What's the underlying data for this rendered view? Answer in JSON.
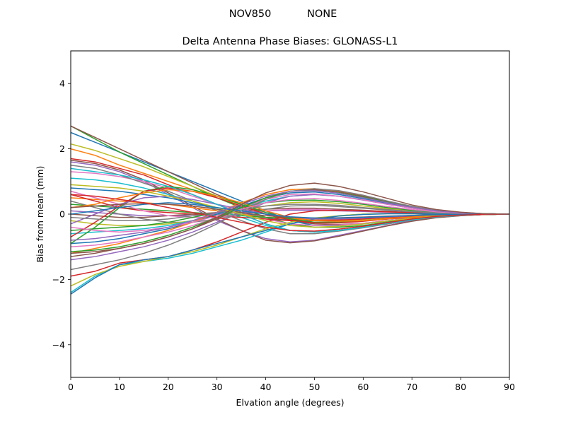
{
  "chart_data": {
    "type": "line",
    "suptitle": "NOV850           NONE",
    "title": "Delta Antenna Phase Biases: GLONASS-L1",
    "xlabel": "Elvation angle (degrees)",
    "ylabel": "Bias from mean (mm)",
    "xlim": [
      0,
      90
    ],
    "ylim": [
      -5,
      5
    ],
    "xticks": [
      "0",
      "10",
      "20",
      "30",
      "40",
      "50",
      "60",
      "70",
      "80",
      "90"
    ],
    "yticks": [
      "−4",
      "−2",
      "0",
      "2",
      "4"
    ],
    "grid": false,
    "legend": "none",
    "x": [
      0,
      5,
      10,
      15,
      20,
      25,
      30,
      35,
      40,
      45,
      50,
      55,
      60,
      65,
      70,
      75,
      80,
      85,
      90
    ],
    "series": [
      {
        "color": "#1f77b4",
        "values": [
          2.5,
          2.2,
          1.9,
          1.6,
          1.3,
          1.0,
          0.7,
          0.4,
          0.1,
          -0.2,
          -0.35,
          -0.35,
          -0.3,
          -0.22,
          -0.15,
          -0.08,
          -0.04,
          -0.01,
          0.0
        ]
      },
      {
        "color": "#ff7f0e",
        "values": [
          2.0,
          1.8,
          1.5,
          1.25,
          1.0,
          0.75,
          0.5,
          0.25,
          0.0,
          -0.15,
          -0.25,
          -0.25,
          -0.2,
          -0.15,
          -0.1,
          -0.05,
          -0.02,
          -0.01,
          0.0
        ]
      },
      {
        "color": "#2ca02c",
        "values": [
          2.7,
          2.3,
          1.9,
          1.55,
          1.2,
          0.85,
          0.5,
          0.2,
          -0.1,
          -0.3,
          -0.4,
          -0.4,
          -0.35,
          -0.25,
          -0.15,
          -0.08,
          -0.04,
          -0.01,
          0.0
        ]
      },
      {
        "color": "#8c564b",
        "values": [
          2.7,
          2.35,
          2.0,
          1.65,
          1.3,
          0.95,
          0.6,
          0.3,
          0.0,
          -0.2,
          -0.3,
          -0.32,
          -0.28,
          -0.2,
          -0.12,
          -0.06,
          -0.03,
          -0.01,
          0.0
        ]
      },
      {
        "color": "#bcbd22",
        "values": [
          2.15,
          1.95,
          1.7,
          1.45,
          1.15,
          0.85,
          0.55,
          0.25,
          0.0,
          -0.15,
          -0.2,
          -0.2,
          -0.17,
          -0.12,
          -0.08,
          -0.04,
          -0.02,
          -0.01,
          0.0
        ]
      },
      {
        "color": "#d62728",
        "values": [
          1.7,
          1.6,
          1.4,
          1.2,
          0.9,
          0.6,
          0.3,
          0.0,
          -0.3,
          -0.5,
          -0.55,
          -0.5,
          -0.4,
          -0.3,
          -0.18,
          -0.09,
          -0.04,
          -0.01,
          0.0
        ]
      },
      {
        "color": "#9467bd",
        "values": [
          1.6,
          1.5,
          1.3,
          1.0,
          0.6,
          0.2,
          -0.2,
          -0.5,
          -0.75,
          -0.85,
          -0.8,
          -0.65,
          -0.5,
          -0.35,
          -0.2,
          -0.1,
          -0.05,
          -0.01,
          0.0
        ]
      },
      {
        "color": "#8c564b",
        "values": [
          1.65,
          1.55,
          1.35,
          1.05,
          0.65,
          0.25,
          -0.15,
          -0.5,
          -0.8,
          -0.88,
          -0.82,
          -0.68,
          -0.52,
          -0.36,
          -0.22,
          -0.11,
          -0.05,
          -0.01,
          0.0
        ]
      },
      {
        "color": "#e377c2",
        "values": [
          1.3,
          1.25,
          1.15,
          1.0,
          0.8,
          0.55,
          0.3,
          0.05,
          -0.15,
          -0.3,
          -0.35,
          -0.33,
          -0.28,
          -0.2,
          -0.12,
          -0.06,
          -0.03,
          -0.01,
          0.0
        ]
      },
      {
        "color": "#7f7f7f",
        "values": [
          1.5,
          1.4,
          1.2,
          0.95,
          0.7,
          0.4,
          0.1,
          -0.2,
          -0.45,
          -0.6,
          -0.6,
          -0.52,
          -0.42,
          -0.3,
          -0.18,
          -0.09,
          -0.04,
          -0.01,
          0.0
        ]
      },
      {
        "color": "#17becf",
        "values": [
          1.1,
          1.05,
          0.95,
          0.8,
          0.6,
          0.4,
          0.15,
          -0.1,
          -0.35,
          -0.5,
          -0.55,
          -0.5,
          -0.4,
          -0.28,
          -0.17,
          -0.08,
          -0.04,
          -0.01,
          0.0
        ]
      },
      {
        "color": "#1f77b4",
        "values": [
          0.8,
          0.75,
          0.7,
          0.6,
          0.5,
          0.35,
          0.2,
          0.05,
          -0.1,
          -0.2,
          -0.25,
          -0.25,
          -0.2,
          -0.15,
          -0.1,
          -0.05,
          -0.02,
          -0.01,
          0.0
        ]
      },
      {
        "color": "#ff7f0e",
        "values": [
          0.5,
          0.45,
          0.4,
          0.35,
          0.3,
          0.2,
          0.1,
          0.0,
          -0.1,
          -0.15,
          -0.18,
          -0.17,
          -0.14,
          -0.1,
          -0.06,
          -0.03,
          -0.01,
          0.0,
          0.0
        ]
      },
      {
        "color": "#2ca02c",
        "values": [
          0.3,
          0.25,
          0.2,
          0.15,
          0.1,
          0.05,
          0.0,
          -0.05,
          -0.1,
          -0.12,
          -0.13,
          -0.12,
          -0.1,
          -0.07,
          -0.05,
          -0.02,
          -0.01,
          0.0,
          0.0
        ]
      },
      {
        "color": "#d62728",
        "values": [
          0.6,
          0.4,
          0.2,
          0.1,
          0.05,
          0.0,
          -0.05,
          -0.1,
          -0.15,
          -0.2,
          -0.2,
          -0.18,
          -0.15,
          -0.1,
          -0.06,
          -0.03,
          -0.01,
          0.0,
          0.0
        ]
      },
      {
        "color": "#9467bd",
        "values": [
          0.1,
          0.05,
          0.0,
          -0.05,
          -0.05,
          -0.05,
          0.0,
          0.05,
          0.1,
          0.12,
          0.12,
          0.1,
          0.08,
          0.05,
          0.03,
          0.01,
          0.0,
          0.0,
          0.0
        ]
      },
      {
        "color": "#8c564b",
        "values": [
          0.0,
          -0.05,
          -0.1,
          -0.1,
          -0.05,
          0.0,
          0.05,
          0.1,
          0.15,
          0.18,
          0.18,
          0.15,
          0.12,
          0.08,
          0.05,
          0.02,
          0.01,
          0.0,
          0.0
        ]
      },
      {
        "color": "#e377c2",
        "values": [
          0.7,
          0.5,
          0.3,
          0.1,
          -0.05,
          -0.1,
          -0.1,
          0.0,
          0.1,
          0.15,
          0.15,
          0.12,
          0.1,
          0.06,
          0.04,
          0.02,
          0.01,
          0.0,
          0.0
        ]
      },
      {
        "color": "#7f7f7f",
        "values": [
          0.4,
          0.2,
          0.0,
          -0.15,
          -0.25,
          -0.25,
          -0.15,
          0.0,
          0.15,
          0.25,
          0.27,
          0.23,
          0.18,
          0.12,
          0.07,
          0.03,
          0.01,
          0.0,
          0.0
        ]
      },
      {
        "color": "#bcbd22",
        "values": [
          -0.2,
          -0.3,
          -0.35,
          -0.35,
          -0.3,
          -0.2,
          -0.05,
          0.1,
          0.25,
          0.35,
          0.38,
          0.33,
          0.25,
          0.17,
          0.1,
          0.05,
          0.02,
          0.0,
          0.0
        ]
      },
      {
        "color": "#17becf",
        "values": [
          -0.6,
          -0.55,
          -0.5,
          -0.45,
          -0.35,
          -0.2,
          0.0,
          0.2,
          0.4,
          0.55,
          0.6,
          0.55,
          0.45,
          0.3,
          0.18,
          0.09,
          0.04,
          0.01,
          0.0
        ]
      },
      {
        "color": "#1f77b4",
        "values": [
          -0.9,
          -0.85,
          -0.75,
          -0.6,
          -0.45,
          -0.25,
          0.0,
          0.25,
          0.5,
          0.65,
          0.68,
          0.6,
          0.48,
          0.33,
          0.2,
          0.1,
          0.04,
          0.01,
          0.0
        ]
      },
      {
        "color": "#ff7f0e",
        "values": [
          -1.2,
          -1.05,
          -0.9,
          -0.7,
          -0.5,
          -0.25,
          0.05,
          0.35,
          0.6,
          0.75,
          0.78,
          0.7,
          0.55,
          0.38,
          0.22,
          0.11,
          0.05,
          0.01,
          0.0
        ]
      },
      {
        "color": "#2ca02c",
        "values": [
          -0.5,
          -0.45,
          -0.4,
          -0.35,
          -0.25,
          -0.1,
          0.05,
          0.2,
          0.35,
          0.42,
          0.43,
          0.38,
          0.3,
          0.2,
          0.12,
          0.06,
          0.02,
          0.0,
          0.0
        ]
      },
      {
        "color": "#d62728",
        "values": [
          -1.9,
          -1.75,
          -1.5,
          -1.4,
          -1.3,
          -1.1,
          -0.85,
          -0.55,
          -0.25,
          0.0,
          0.1,
          0.12,
          0.1,
          0.07,
          0.04,
          0.02,
          0.01,
          0.0,
          0.0
        ]
      },
      {
        "color": "#9467bd",
        "values": [
          -1.4,
          -1.3,
          -1.15,
          -1.0,
          -0.8,
          -0.55,
          -0.25,
          0.05,
          0.35,
          0.55,
          0.6,
          0.55,
          0.43,
          0.3,
          0.18,
          0.09,
          0.04,
          0.01,
          0.0
        ]
      },
      {
        "color": "#8c564b",
        "values": [
          -1.3,
          -1.2,
          -1.05,
          -0.9,
          -0.7,
          -0.45,
          -0.15,
          0.2,
          0.5,
          0.7,
          0.75,
          0.68,
          0.55,
          0.38,
          0.22,
          0.11,
          0.05,
          0.01,
          0.0
        ]
      },
      {
        "color": "#e377c2",
        "values": [
          -1.0,
          -0.95,
          -0.85,
          -0.7,
          -0.55,
          -0.35,
          -0.1,
          0.2,
          0.45,
          0.6,
          0.62,
          0.55,
          0.44,
          0.3,
          0.18,
          0.09,
          0.04,
          0.01,
          0.0
        ]
      },
      {
        "color": "#7f7f7f",
        "values": [
          -1.7,
          -1.55,
          -1.4,
          -1.2,
          -0.95,
          -0.65,
          -0.3,
          0.1,
          0.45,
          0.7,
          0.78,
          0.72,
          0.58,
          0.4,
          0.24,
          0.12,
          0.05,
          0.01,
          0.0
        ]
      },
      {
        "color": "#17becf",
        "values": [
          -2.4,
          -1.9,
          -1.55,
          -1.45,
          -1.35,
          -1.2,
          -1.0,
          -0.8,
          -0.55,
          -0.3,
          -0.15,
          -0.05,
          0.0,
          0.02,
          0.02,
          0.01,
          0.0,
          0.0,
          0.0
        ]
      },
      {
        "color": "#bcbd22",
        "values": [
          -2.2,
          -1.85,
          -1.6,
          -1.45,
          -1.3,
          -1.15,
          -0.95,
          -0.7,
          -0.45,
          -0.25,
          -0.12,
          -0.05,
          0.0,
          0.02,
          0.01,
          0.0,
          0.0,
          0.0,
          0.0
        ]
      },
      {
        "color": "#1f77b4",
        "values": [
          -2.45,
          -1.95,
          -1.55,
          -1.4,
          -1.3,
          -1.1,
          -0.9,
          -0.7,
          -0.5,
          -0.3,
          -0.15,
          -0.06,
          -0.01,
          0.01,
          0.01,
          0.0,
          0.0,
          0.0,
          0.0
        ]
      },
      {
        "color": "#2ca02c",
        "values": [
          -0.9,
          -0.4,
          0.2,
          0.7,
          0.85,
          0.75,
          0.55,
          0.3,
          0.05,
          -0.15,
          -0.25,
          -0.25,
          -0.2,
          -0.14,
          -0.09,
          -0.04,
          -0.02,
          -0.01,
          0.0
        ]
      },
      {
        "color": "#d62728",
        "values": [
          -0.7,
          -0.25,
          0.25,
          0.7,
          0.8,
          0.7,
          0.5,
          0.25,
          0.0,
          -0.18,
          -0.27,
          -0.27,
          -0.22,
          -0.15,
          -0.1,
          -0.05,
          -0.02,
          -0.01,
          0.0
        ]
      },
      {
        "color": "#9467bd",
        "values": [
          -0.3,
          0.0,
          0.3,
          0.5,
          0.55,
          0.45,
          0.3,
          0.15,
          0.0,
          -0.1,
          -0.15,
          -0.15,
          -0.12,
          -0.08,
          -0.05,
          -0.03,
          -0.01,
          0.0,
          0.0
        ]
      },
      {
        "color": "#ff7f0e",
        "values": [
          0.2,
          0.3,
          0.5,
          0.65,
          0.75,
          0.7,
          0.55,
          0.35,
          0.1,
          -0.1,
          -0.2,
          -0.22,
          -0.2,
          -0.14,
          -0.09,
          -0.04,
          -0.02,
          -0.01,
          0.0
        ]
      },
      {
        "color": "#17becf",
        "values": [
          1.4,
          1.3,
          1.2,
          1.05,
          0.85,
          0.6,
          0.3,
          0.0,
          -0.3,
          -0.5,
          -0.55,
          -0.5,
          -0.4,
          -0.28,
          -0.17,
          -0.08,
          -0.04,
          -0.01,
          0.0
        ]
      },
      {
        "color": "#8c564b",
        "values": [
          0.2,
          0.25,
          0.3,
          0.32,
          0.3,
          0.25,
          0.15,
          0.05,
          -0.05,
          -0.1,
          -0.12,
          -0.11,
          -0.09,
          -0.06,
          -0.04,
          -0.02,
          -0.01,
          0.0,
          0.0
        ]
      },
      {
        "color": "#7f7f7f",
        "values": [
          -0.1,
          -0.15,
          -0.2,
          -0.2,
          -0.15,
          -0.05,
          0.05,
          0.15,
          0.25,
          0.3,
          0.3,
          0.27,
          0.2,
          0.14,
          0.08,
          0.04,
          0.02,
          0.0,
          0.0
        ]
      },
      {
        "color": "#bcbd22",
        "values": [
          0.9,
          0.85,
          0.8,
          0.7,
          0.55,
          0.4,
          0.2,
          0.0,
          -0.2,
          -0.35,
          -0.4,
          -0.37,
          -0.3,
          -0.21,
          -0.13,
          -0.06,
          -0.03,
          -0.01,
          0.0
        ]
      },
      {
        "color": "#e377c2",
        "values": [
          -0.4,
          -0.5,
          -0.55,
          -0.5,
          -0.4,
          -0.25,
          -0.05,
          0.15,
          0.35,
          0.45,
          0.48,
          0.42,
          0.33,
          0.23,
          0.14,
          0.07,
          0.03,
          0.01,
          0.0
        ]
      },
      {
        "color": "#2ca02c",
        "values": [
          -1.15,
          -1.1,
          -1.0,
          -0.85,
          -0.65,
          -0.4,
          -0.1,
          0.2,
          0.5,
          0.7,
          0.72,
          0.65,
          0.52,
          0.36,
          0.21,
          0.1,
          0.04,
          0.01,
          0.0
        ]
      },
      {
        "color": "#1f77b4",
        "values": [
          0.0,
          0.1,
          0.2,
          0.3,
          0.35,
          0.3,
          0.2,
          0.1,
          0.0,
          -0.08,
          -0.12,
          -0.12,
          -0.1,
          -0.07,
          -0.04,
          -0.02,
          -0.01,
          0.0,
          0.0
        ]
      },
      {
        "color": "#d62728",
        "values": [
          0.6,
          0.55,
          0.45,
          0.35,
          0.2,
          0.05,
          -0.1,
          -0.25,
          -0.4,
          -0.5,
          -0.52,
          -0.46,
          -0.37,
          -0.26,
          -0.15,
          -0.07,
          -0.03,
          -0.01,
          0.0
        ]
      },
      {
        "color": "#9467bd",
        "values": [
          -0.8,
          -0.75,
          -0.65,
          -0.55,
          -0.4,
          -0.2,
          0.05,
          0.3,
          0.55,
          0.7,
          0.72,
          0.64,
          0.5,
          0.35,
          0.21,
          0.1,
          0.04,
          0.01,
          0.0
        ]
      },
      {
        "color": "#8c564b",
        "values": [
          -1.2,
          -1.15,
          -1.05,
          -0.9,
          -0.7,
          -0.45,
          -0.1,
          0.3,
          0.65,
          0.88,
          0.95,
          0.85,
          0.68,
          0.48,
          0.28,
          0.14,
          0.06,
          0.01,
          0.0
        ]
      }
    ]
  }
}
